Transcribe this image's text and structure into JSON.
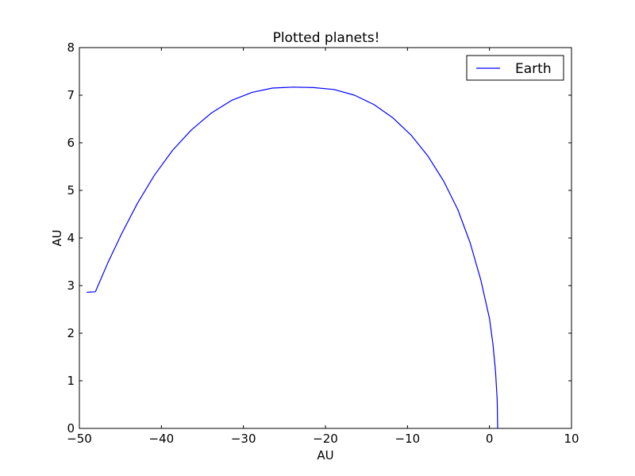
{
  "chart_data": {
    "type": "line",
    "title": "Plotted planets!",
    "xlabel": "AU",
    "ylabel": "AU",
    "xlim": [
      -50,
      10
    ],
    "ylim": [
      0,
      8
    ],
    "xticks": [
      -50,
      -40,
      -30,
      -20,
      -10,
      0,
      10
    ],
    "yticks": [
      0,
      1,
      2,
      3,
      4,
      5,
      6,
      7,
      8
    ],
    "xtick_labels": [
      "−50",
      "−40",
      "−30",
      "−20",
      "−10",
      "0",
      "10"
    ],
    "ytick_labels": [
      "0",
      "1",
      "2",
      "3",
      "4",
      "5",
      "6",
      "7",
      "8"
    ],
    "grid": false,
    "legend_position": "top-right",
    "series": [
      {
        "name": "Earth",
        "color": "#0000ff",
        "x": [
          1.0,
          0.94,
          0.74,
          0.43,
          0.0,
          -1.06,
          -2.36,
          -3.87,
          -5.6,
          -7.5,
          -9.55,
          -11.75,
          -14.05,
          -16.45,
          -18.95,
          -21.45,
          -23.95,
          -25.15,
          -26.45,
          -28.95,
          -31.45,
          -33.95,
          -36.35,
          -38.65,
          -40.85,
          -42.95,
          -44.85,
          -46.55,
          -48.05,
          -49.1
        ],
        "y": [
          0.0,
          0.6,
          1.19,
          1.76,
          2.31,
          3.12,
          3.9,
          4.6,
          5.2,
          5.72,
          6.16,
          6.52,
          6.8,
          7.0,
          7.12,
          7.16,
          7.17,
          7.16,
          7.15,
          7.06,
          6.89,
          6.62,
          6.27,
          5.84,
          5.32,
          4.72,
          4.09,
          3.47,
          2.87,
          2.86
        ]
      }
    ]
  }
}
